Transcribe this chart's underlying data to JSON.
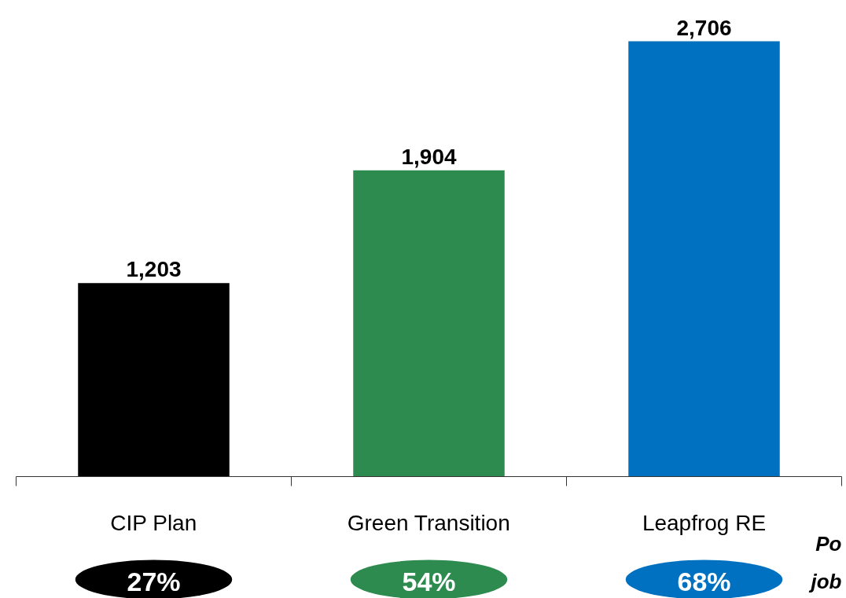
{
  "chart_data": {
    "type": "bar",
    "categories": [
      "CIP Plan",
      "Green Transition",
      "Leapfrog RE"
    ],
    "values": [
      1203,
      1904,
      2706
    ],
    "colors": [
      "#000000",
      "#2e8b4f",
      "#0070c0"
    ],
    "data_labels": true,
    "value_labels": [
      "1,203",
      "1,904",
      "2,706"
    ],
    "grid": false,
    "annotations": [
      "27%",
      "54%",
      "68%",
      "Po\njob"
    ]
  }
}
